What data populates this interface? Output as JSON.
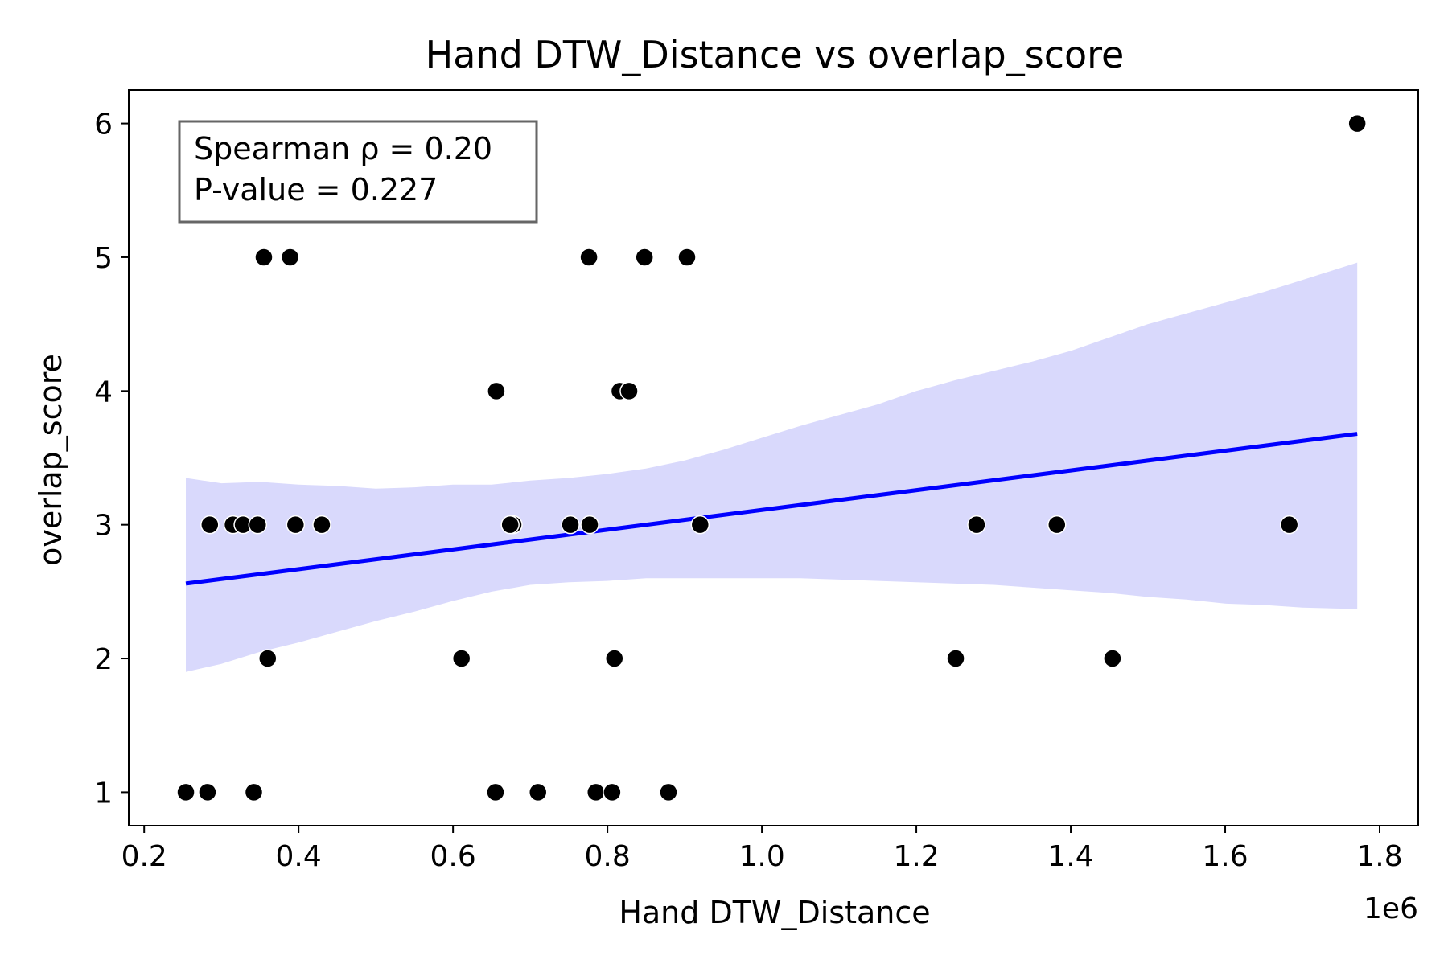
{
  "chart_data": {
    "type": "scatter",
    "title": "Hand DTW_Distance vs overlap_score",
    "xlabel": "Hand DTW_Distance",
    "ylabel": "overlap_score",
    "x_offset_label": "1e6",
    "xlim": [
      0.18,
      1.85
    ],
    "ylim": [
      0.75,
      6.25
    ],
    "xticks": [
      0.2,
      0.4,
      0.6,
      0.8,
      1.0,
      1.2,
      1.4,
      1.6,
      1.8
    ],
    "xtick_labels": [
      "0.2",
      "0.4",
      "0.6",
      "0.8",
      "1.0",
      "1.2",
      "1.4",
      "1.6",
      "1.8"
    ],
    "yticks": [
      1,
      2,
      3,
      4,
      5,
      6
    ],
    "ytick_labels": [
      "1",
      "2",
      "3",
      "4",
      "5",
      "6"
    ],
    "grid": false,
    "annotation": {
      "lines": [
        "Spearman ρ = 0.20",
        "P-value = 0.227"
      ],
      "placement": "top-left"
    },
    "points": [
      {
        "x": 0.254,
        "y": 1
      },
      {
        "x": 0.282,
        "y": 1
      },
      {
        "x": 0.342,
        "y": 1
      },
      {
        "x": 0.655,
        "y": 1
      },
      {
        "x": 0.71,
        "y": 1
      },
      {
        "x": 0.785,
        "y": 1
      },
      {
        "x": 0.806,
        "y": 1
      },
      {
        "x": 0.879,
        "y": 1
      },
      {
        "x": 0.36,
        "y": 2
      },
      {
        "x": 0.611,
        "y": 2
      },
      {
        "x": 0.809,
        "y": 2
      },
      {
        "x": 1.251,
        "y": 2
      },
      {
        "x": 1.454,
        "y": 2
      },
      {
        "x": 0.285,
        "y": 3
      },
      {
        "x": 0.315,
        "y": 3
      },
      {
        "x": 0.328,
        "y": 3
      },
      {
        "x": 0.347,
        "y": 3
      },
      {
        "x": 0.396,
        "y": 3
      },
      {
        "x": 0.43,
        "y": 3
      },
      {
        "x": 0.678,
        "y": 3
      },
      {
        "x": 0.674,
        "y": 3
      },
      {
        "x": 0.752,
        "y": 3
      },
      {
        "x": 0.777,
        "y": 3
      },
      {
        "x": 0.92,
        "y": 3
      },
      {
        "x": 1.278,
        "y": 3
      },
      {
        "x": 1.382,
        "y": 3
      },
      {
        "x": 1.683,
        "y": 3
      },
      {
        "x": 0.656,
        "y": 4
      },
      {
        "x": 0.816,
        "y": 4
      },
      {
        "x": 0.828,
        "y": 4
      },
      {
        "x": 0.355,
        "y": 5
      },
      {
        "x": 0.389,
        "y": 5
      },
      {
        "x": 0.776,
        "y": 5
      },
      {
        "x": 0.848,
        "y": 5
      },
      {
        "x": 0.903,
        "y": 5
      },
      {
        "x": 1.771,
        "y": 6
      }
    ],
    "regression": {
      "x": [
        0.254,
        1.771
      ],
      "y": [
        2.56,
        3.68
      ],
      "color": "#0000ff"
    },
    "confidence_band": {
      "color": "#d9d9fc",
      "x": [
        0.254,
        0.3,
        0.35,
        0.4,
        0.45,
        0.5,
        0.55,
        0.6,
        0.65,
        0.7,
        0.75,
        0.8,
        0.85,
        0.9,
        0.95,
        1.0,
        1.05,
        1.1,
        1.15,
        1.2,
        1.25,
        1.3,
        1.35,
        1.4,
        1.45,
        1.5,
        1.55,
        1.6,
        1.65,
        1.7,
        1.771
      ],
      "upper": [
        3.35,
        3.31,
        3.32,
        3.3,
        3.29,
        3.27,
        3.28,
        3.3,
        3.3,
        3.33,
        3.35,
        3.38,
        3.42,
        3.48,
        3.56,
        3.65,
        3.74,
        3.82,
        3.9,
        4.0,
        4.08,
        4.15,
        4.22,
        4.3,
        4.4,
        4.5,
        4.58,
        4.66,
        4.74,
        4.83,
        4.96
      ],
      "lower": [
        1.9,
        1.96,
        2.05,
        2.12,
        2.2,
        2.28,
        2.35,
        2.43,
        2.5,
        2.55,
        2.57,
        2.58,
        2.6,
        2.6,
        2.6,
        2.6,
        2.6,
        2.59,
        2.58,
        2.57,
        2.56,
        2.55,
        2.53,
        2.51,
        2.49,
        2.46,
        2.44,
        2.41,
        2.4,
        2.38,
        2.37
      ]
    }
  }
}
